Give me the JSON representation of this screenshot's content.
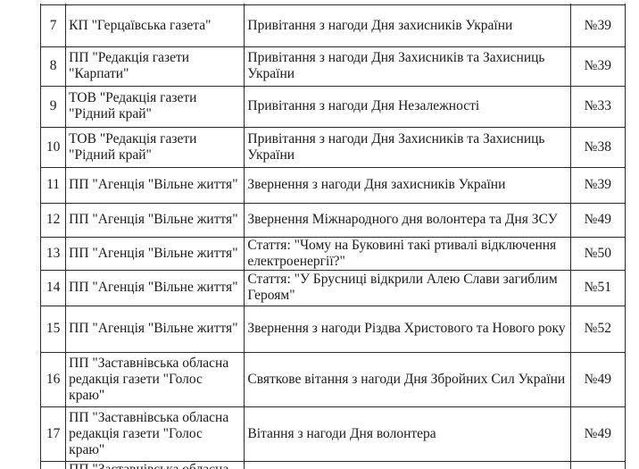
{
  "rows": [
    {
      "num": "7",
      "org": "КП \"Герцаївська газета\"",
      "content": "Привітання з нагоди Дня захисників України",
      "issue": "№39"
    },
    {
      "num": "8",
      "org": "ПП \"Редакція газети \"Карпати\"",
      "content": "Привітання з нагоди Дня Захисників та Захисниць України",
      "issue": "№39"
    },
    {
      "num": "9",
      "org": "ТОВ \"Редакція газети \"Рідний край\"",
      "content": "Привітання з нагоди Дня Незалежності",
      "issue": "№33"
    },
    {
      "num": "10",
      "org": "ТОВ \"Редакція газети \"Рідний край\"",
      "content": "Привітання з нагоди Дня Захисників та Захисниць України",
      "issue": "№38"
    },
    {
      "num": "11",
      "org": "ПП \"Агенція \"Вільне життя\"",
      "content": "Звернення з нагоди Дня захисників України",
      "issue": "№39"
    },
    {
      "num": "12",
      "org": "ПП \"Агенція \"Вільне життя\"",
      "content": "Звернення Міжнародного дня волонтера та Дня ЗСУ",
      "issue": "№49"
    },
    {
      "num": "13",
      "org": "ПП \"Агенція \"Вільне життя\"",
      "content": "Стаття: \"Чому на Буковині такі ртивалі відключення електроенергії?\"",
      "issue": "№50"
    },
    {
      "num": "14",
      "org": "ПП \"Агенція \"Вільне життя\"",
      "content": "Стаття: \"У Брусниці відкрили Алею Слави загиблим Героям\"",
      "issue": "№51"
    },
    {
      "num": "15",
      "org": "ПП \"Агенція \"Вільне життя\"",
      "content": "Звернення з нагоди Різдва Христового та Нового року",
      "issue": "№52"
    },
    {
      "num": "16",
      "org": "ПП \"Заставнівська обласна редакція газети \"Голос краю\"",
      "content": "Святкове вітання з нагоди Дня Збройних Сил України",
      "issue": "№49"
    },
    {
      "num": "17",
      "org": "ПП \"Заставнівська обласна редакція газети \"Голос краю\"",
      "content": "Вітання з нагоди Дня волонтера",
      "issue": "№49"
    }
  ],
  "partial_row": {
    "org": "ПП \"Заставнівська обласна"
  }
}
